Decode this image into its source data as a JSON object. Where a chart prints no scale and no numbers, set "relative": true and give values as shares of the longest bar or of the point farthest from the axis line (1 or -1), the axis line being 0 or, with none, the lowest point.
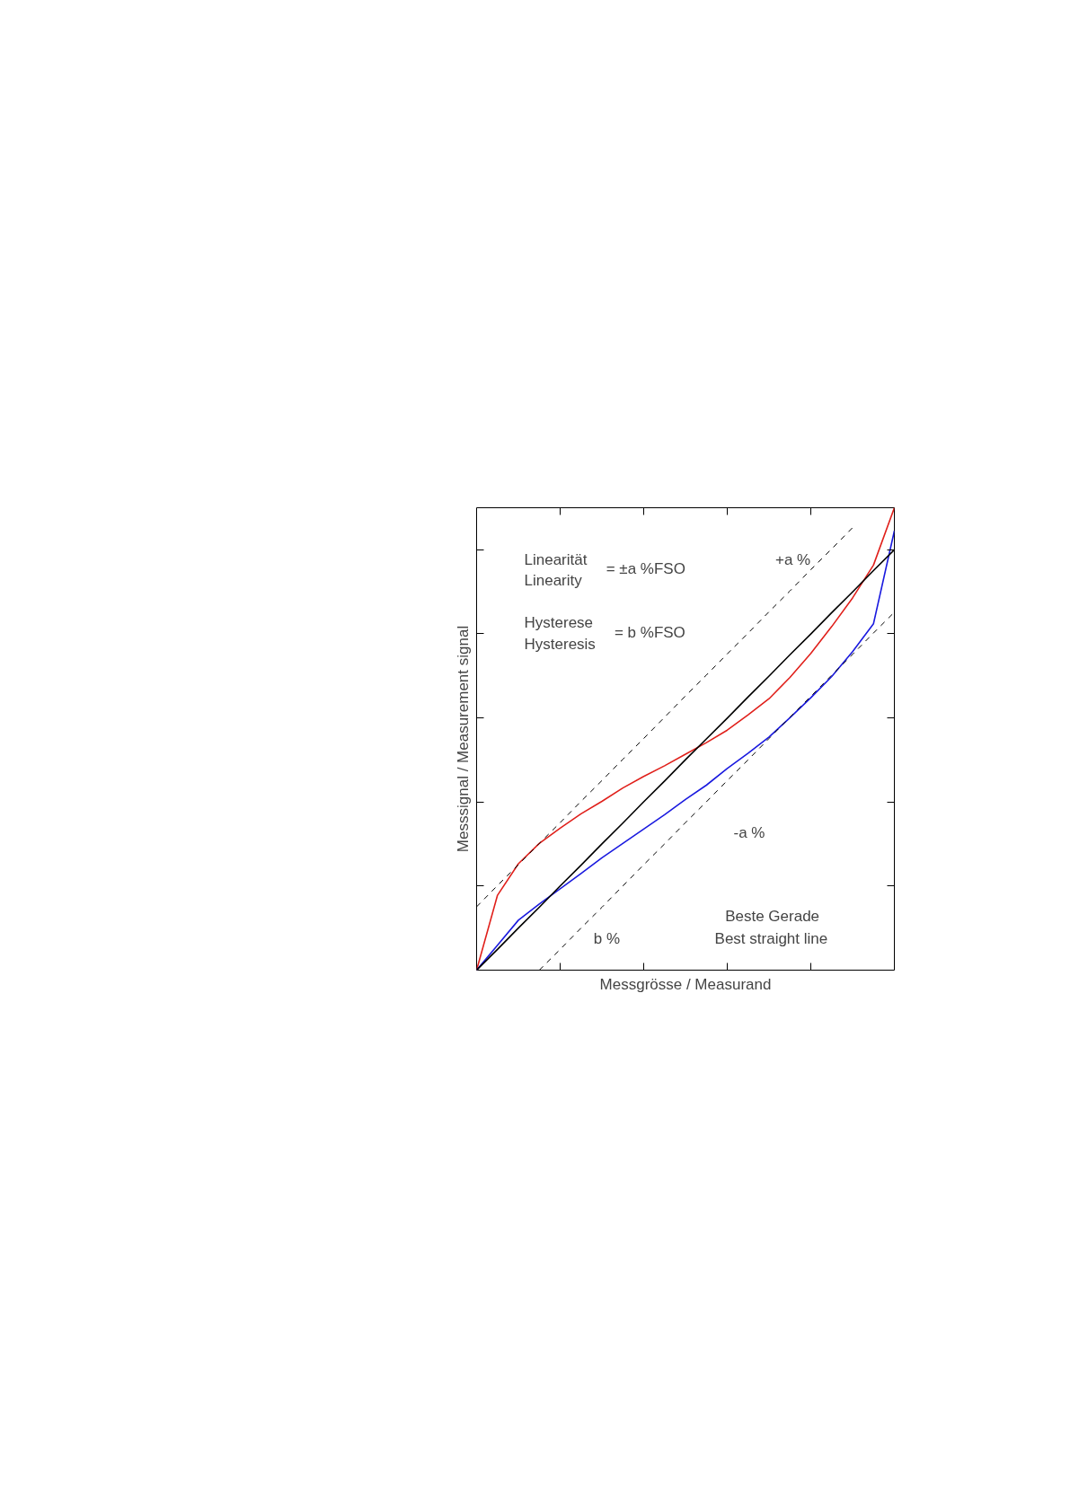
{
  "chart_data": {
    "type": "line",
    "relative": true,
    "xlabel": "Messgrösse / Measurand",
    "ylabel": "Messsignal / Measurement signal",
    "categories": [
      null,
      null,
      null,
      null,
      null,
      null,
      null,
      null,
      null,
      null,
      null,
      null,
      null,
      null,
      null,
      null,
      null,
      null,
      null,
      null,
      null
    ],
    "series": [
      {
        "color": "#e0201b",
        "values": [
          0,
          0.162,
          0.23,
          0.274,
          0.307,
          0.338,
          0.365,
          0.394,
          0.419,
          0.442,
          0.467,
          0.492,
          0.519,
          0.552,
          0.587,
          0.633,
          0.685,
          0.743,
          0.805,
          0.876,
          1
        ]
      },
      {
        "color": "#1a1adf",
        "values": [
          0,
          0.054,
          0.108,
          0.143,
          0.176,
          0.209,
          0.243,
          0.274,
          0.305,
          0.336,
          0.369,
          0.4,
          0.436,
          0.469,
          0.504,
          0.546,
          0.589,
          0.635,
          0.689,
          0.749,
          0.95
        ]
      },
      {
        "color": "#000000",
        "values": [
          0,
          0.045,
          0.091,
          0.136,
          0.182,
          0.227,
          0.273,
          0.318,
          0.364,
          0.409,
          0.455,
          0.5,
          0.545,
          0.591,
          0.636,
          0.682,
          0.727,
          0.773,
          0.818,
          0.864,
          0.909
        ]
      },
      {
        "color": "#000000",
        "line_style": "dashed",
        "values": [
          0.137,
          0.183,
          0.228,
          0.274,
          0.319,
          0.365,
          0.41,
          0.456,
          0.501,
          0.547,
          0.593,
          0.638,
          0.684,
          0.729,
          0.775,
          0.82,
          0.866,
          0.911,
          0.957,
          null,
          null
        ]
      },
      {
        "color": "#000000",
        "line_style": "dashed",
        "values": [
          null,
          null,
          null,
          0,
          0.045,
          0.091,
          0.136,
          0.182,
          0.228,
          0.273,
          0.319,
          0.364,
          0.41,
          0.455,
          0.501,
          0.547,
          0.592,
          0.638,
          0.683,
          0.729,
          0.774
        ]
      }
    ],
    "annotations": [
      "Linearität",
      "Linearity",
      "= ±a %FSO",
      "Hysterese",
      "Hysteresis",
      "= b %FSO",
      "+a %",
      "-a %",
      "b %",
      "Beste Gerade",
      "Best straight line"
    ],
    "grid": false,
    "marker": "none",
    "line_style": "solid"
  }
}
